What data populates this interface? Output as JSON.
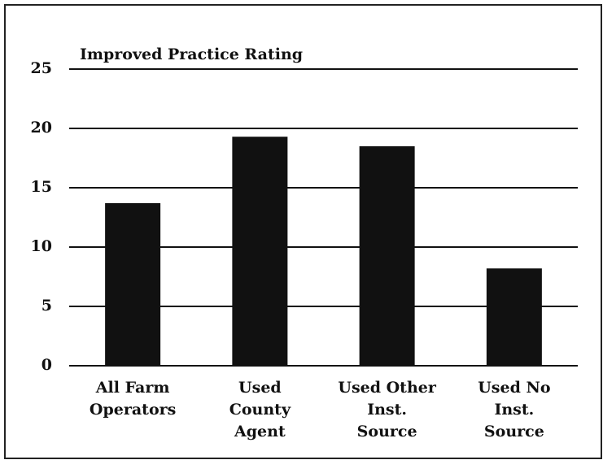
{
  "chart_data": {
    "type": "bar",
    "title": "Improved Practice Rating",
    "categories": [
      "All Farm\nOperators",
      "Used\nCounty\nAgent",
      "Used Other\nInst.\nSource",
      "Used No\nInst.\nSource"
    ],
    "values": [
      13.7,
      19.3,
      18.5,
      8.2
    ],
    "color": "#111111",
    "ylim": [
      0,
      25
    ],
    "yticks": [
      0,
      5,
      10,
      15,
      20,
      25
    ],
    "grid": true
  }
}
